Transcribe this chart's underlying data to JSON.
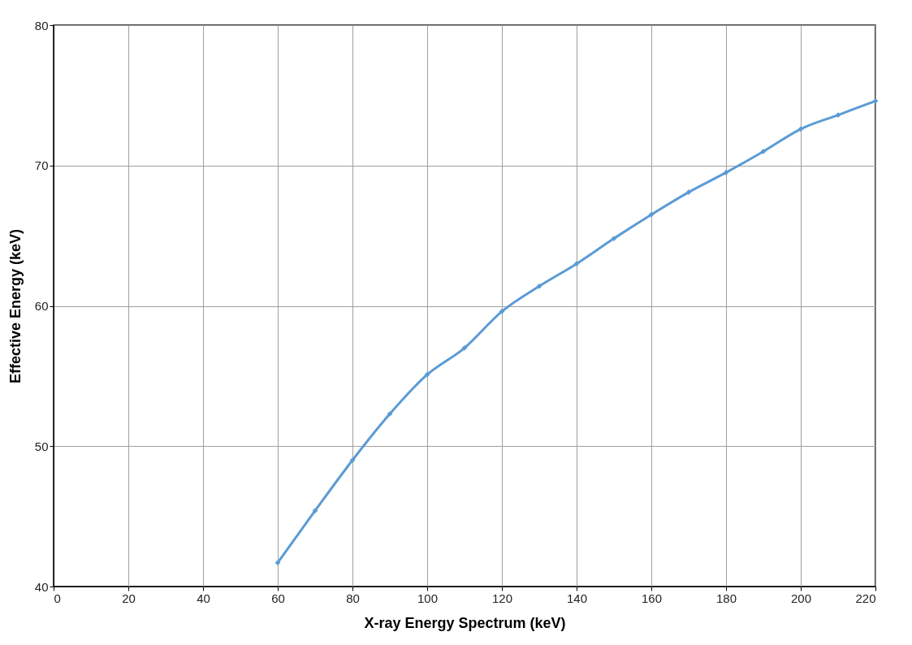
{
  "chart_data": {
    "type": "line",
    "xlabel": "X-ray Energy Spectrum (keV)",
    "ylabel": "Effective Energy (keV)",
    "x": [
      60,
      70,
      80,
      90,
      100,
      110,
      120,
      130,
      140,
      150,
      160,
      170,
      180,
      190,
      200,
      210,
      220
    ],
    "series": [
      {
        "color": "#5b9bd5",
        "values": [
          41.7,
          45.4,
          49.0,
          52.3,
          55.1,
          57.0,
          59.6,
          61.4,
          63.0,
          64.8,
          66.5,
          68.1,
          69.5,
          71.0,
          72.6,
          73.6,
          74.6
        ]
      }
    ],
    "xlim": [
      0,
      220
    ],
    "xticks": [
      0,
      20,
      40,
      60,
      80,
      100,
      120,
      140,
      160,
      180,
      200,
      220
    ],
    "ylim": [
      40,
      80
    ],
    "yticks": [
      40,
      50,
      60,
      70,
      80
    ],
    "grid": true,
    "marker": "diamond",
    "line_style": "solid"
  }
}
